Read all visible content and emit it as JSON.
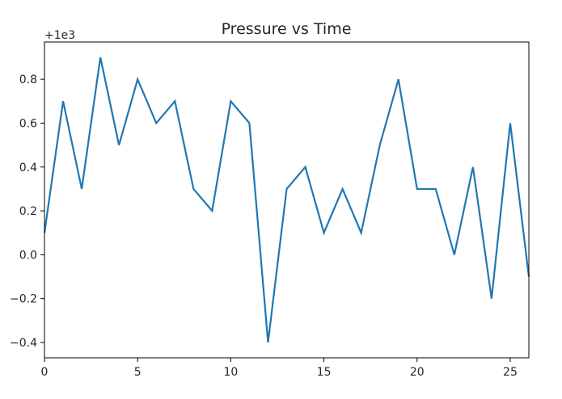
{
  "chart_data": {
    "type": "line",
    "title": "Pressure vs Time",
    "xlabel": "",
    "ylabel": "",
    "y_offset_label": "+1e3",
    "xlim": [
      0,
      26
    ],
    "ylim": [
      -0.47,
      0.97
    ],
    "x_ticks": [
      0,
      5,
      10,
      15,
      20,
      25
    ],
    "x_tick_labels": [
      "0",
      "5",
      "10",
      "15",
      "20",
      "25"
    ],
    "y_ticks": [
      -0.4,
      -0.2,
      0.0,
      0.2,
      0.4,
      0.6,
      0.8
    ],
    "y_tick_labels": [
      "−0.4",
      "−0.2",
      "0.0",
      "0.2",
      "0.4",
      "0.6",
      "0.8"
    ],
    "grid": false,
    "series": [
      {
        "color": "#1f77b4",
        "x": [
          0,
          1,
          2,
          3,
          4,
          5,
          6,
          7,
          8,
          9,
          10,
          11,
          12,
          13,
          14,
          15,
          16,
          17,
          18,
          19,
          20,
          21,
          22,
          23,
          24,
          25,
          26
        ],
        "y": [
          0.1,
          0.7,
          0.3,
          0.9,
          0.5,
          0.8,
          0.6,
          0.7,
          0.3,
          0.2,
          0.7,
          0.6,
          -0.4,
          0.3,
          0.4,
          0.1,
          0.3,
          0.1,
          0.5,
          0.8,
          0.3,
          0.3,
          0.0,
          0.4,
          -0.2,
          0.6,
          -0.1
        ]
      }
    ]
  }
}
